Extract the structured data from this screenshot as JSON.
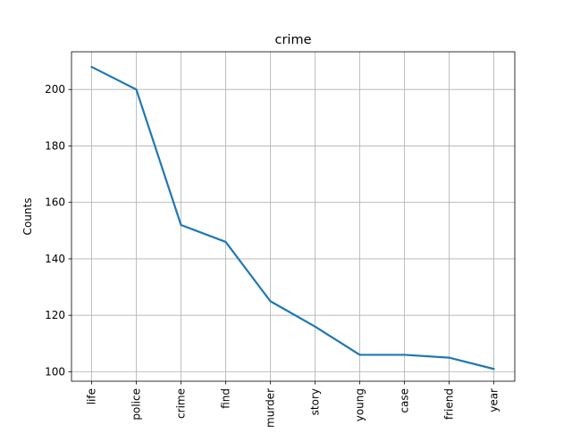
{
  "chart_data": {
    "type": "line",
    "title": "crime",
    "xlabel": "",
    "ylabel": "Counts",
    "categories": [
      "life",
      "police",
      "crime",
      "find",
      "murder",
      "story",
      "young",
      "case",
      "friend",
      "year"
    ],
    "series": [
      {
        "values": [
          208,
          200,
          152,
          146,
          125,
          116,
          106,
          106,
          105,
          101
        ]
      }
    ],
    "ylim": [
      96.65,
      213.35
    ],
    "yticks": [
      100,
      120,
      140,
      160,
      180,
      200
    ],
    "grid": true,
    "colors": {
      "line": "#1f77b4",
      "grid": "#b0b0b0",
      "axis": "#000000"
    }
  }
}
